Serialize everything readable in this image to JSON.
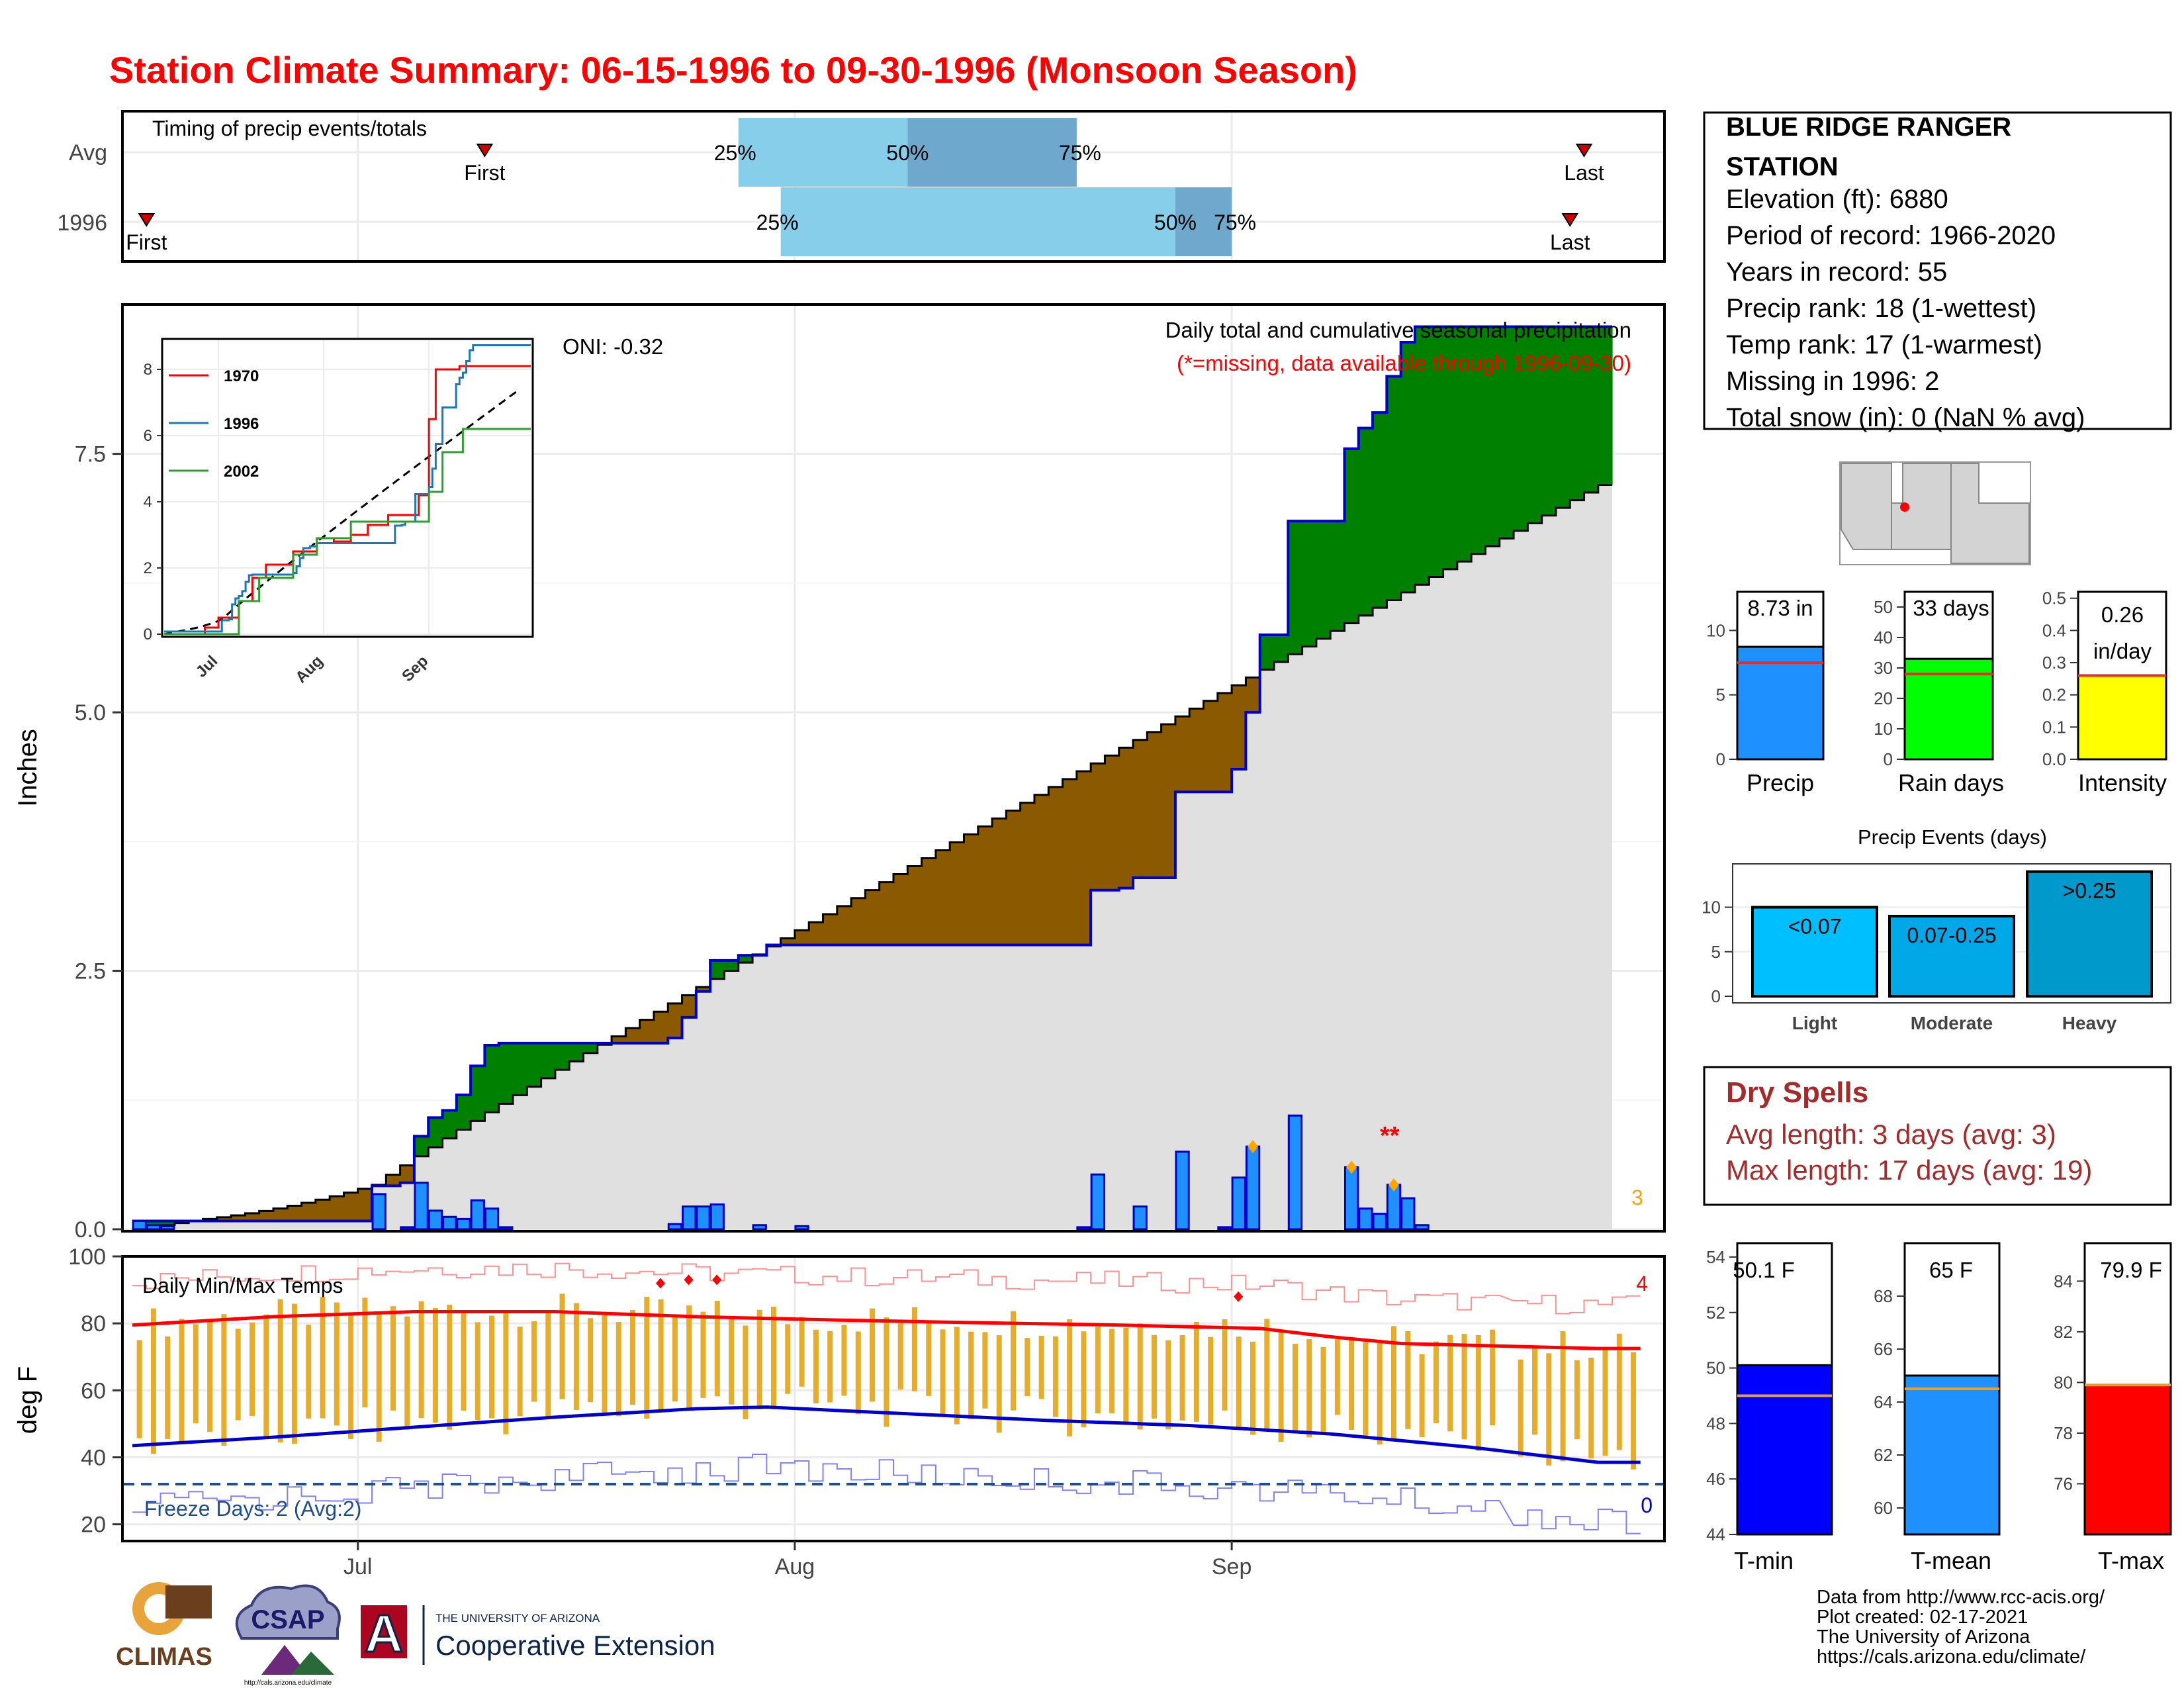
{
  "title": "Station Climate Summary: 06-15-1996 to 09-30-1996 (Monsoon Season)",
  "colors": {
    "title": "#ff0000",
    "drySpells": "#a52a2a",
    "green": "#008000",
    "brown": "#8b5a00",
    "blueBar": "#1e90ff",
    "cumLine": "#0000cc",
    "gray": "#e0e0e0",
    "tmax": "#ff0000",
    "tmin": "#0000cc",
    "tbar": "#e6ac2a",
    "light": "#00bfff",
    "moderate": "#00a8e8",
    "heavy": "#0099cc",
    "rainDays": "#00ff00",
    "intensity": "#ffff00",
    "tminBox": "#0000ff",
    "tmeanBox": "#1e90ff",
    "tmaxBox": "#ff0000"
  },
  "timing": {
    "label": "Timing of precip events/totals",
    "rows": [
      "Avg",
      "1996"
    ],
    "avg": {
      "first_day": 25,
      "last_day": 103,
      "p25": 43,
      "p50": 55,
      "p75": 67
    },
    "y1996": {
      "first_day": 1,
      "last_day": 102,
      "p25": 46,
      "p50": 74,
      "p75": 78
    },
    "first_label": "First",
    "last_label": "Last",
    "p25_label": "25%",
    "p50_label": "50%",
    "p75_label": "75%"
  },
  "main": {
    "title_line1": "Daily total and cumulative seasonal precipitation",
    "title_line2": "(*=missing, data available through 1996-09-30)",
    "oni": "ONI: -0.32",
    "ylabel": "Inches",
    "yticks": [
      "0.0",
      "2.5",
      "5.0",
      "7.5"
    ],
    "missing_marker": "**",
    "count_label": "3"
  },
  "chart_data": [
    {
      "type": "area",
      "title": "Daily total and cumulative seasonal precipitation",
      "ylabel": "Inches",
      "ylim": [
        0,
        8.9
      ],
      "x_start": "1996-06-15",
      "x_months": [
        "Jul",
        "Aug",
        "Sep"
      ],
      "series": [
        {
          "name": "1996",
          "cumulative": [
            [
              0,
              0.08
            ],
            [
              16,
              0.08
            ],
            [
              17,
              0.42
            ],
            [
              19,
              0.45
            ],
            [
              20,
              0.9
            ],
            [
              21,
              1.08
            ],
            [
              22,
              1.15
            ],
            [
              23,
              1.3
            ],
            [
              24,
              1.58
            ],
            [
              25,
              1.78
            ],
            [
              26,
              1.8
            ],
            [
              37,
              1.8
            ],
            [
              38,
              1.85
            ],
            [
              39,
              2.05
            ],
            [
              40,
              2.3
            ],
            [
              41,
              2.6
            ],
            [
              42,
              2.6
            ],
            [
              43,
              2.65
            ],
            [
              44,
              2.65
            ],
            [
              45,
              2.75
            ],
            [
              67,
              2.75
            ],
            [
              68,
              3.28
            ],
            [
              70,
              3.3
            ],
            [
              71,
              3.4
            ],
            [
              74,
              4.23
            ],
            [
              77,
              4.23
            ],
            [
              78,
              4.45
            ],
            [
              79,
              5.0
            ],
            [
              80,
              5.75
            ],
            [
              81,
              5.75
            ],
            [
              82,
              6.85
            ],
            [
              85,
              6.85
            ],
            [
              86,
              7.55
            ],
            [
              87,
              7.75
            ],
            [
              88,
              7.9
            ],
            [
              89,
              8.25
            ],
            [
              90,
              8.58
            ],
            [
              91,
              8.73
            ],
            [
              104,
              8.73
            ]
          ]
        },
        {
          "name": "Avg",
          "cumulative_endpoints": [
            [
              0,
              0
            ],
            [
              104,
              7.2
            ]
          ]
        }
      ],
      "daily_precip": [
        [
          0,
          0.08
        ],
        [
          1,
          0.04
        ],
        [
          2,
          0.03
        ],
        [
          17,
          0.34
        ],
        [
          19,
          0.02
        ],
        [
          20,
          0.45
        ],
        [
          21,
          0.18
        ],
        [
          22,
          0.12
        ],
        [
          23,
          0.1
        ],
        [
          24,
          0.28
        ],
        [
          25,
          0.2
        ],
        [
          26,
          0.02
        ],
        [
          38,
          0.05
        ],
        [
          39,
          0.22
        ],
        [
          40,
          0.22
        ],
        [
          41,
          0.24
        ],
        [
          44,
          0.04
        ],
        [
          47,
          0.03
        ],
        [
          67,
          0.02
        ],
        [
          68,
          0.53
        ],
        [
          71,
          0.22
        ],
        [
          74,
          0.75
        ],
        [
          77,
          0.02
        ],
        [
          78,
          0.5
        ],
        [
          79,
          0.8
        ],
        [
          82,
          1.1
        ],
        [
          86,
          0.6
        ],
        [
          87,
          0.2
        ],
        [
          88,
          0.15
        ],
        [
          89,
          0.43
        ],
        [
          90,
          0.3
        ],
        [
          91,
          0.04
        ]
      ],
      "orange_dots_days": [
        79,
        86,
        89
      ]
    },
    {
      "type": "line",
      "title": "Daily Min/Max Temps",
      "ylabel": "deg F",
      "ylim": [
        15,
        100
      ],
      "yticks": [
        20,
        40,
        60,
        80,
        100
      ],
      "freeze_threshold": 32,
      "series": [
        {
          "name": "avg_tmax",
          "points": [
            [
              0,
              79.5
            ],
            [
              10,
              82
            ],
            [
              20,
              83.5
            ],
            [
              30,
              83.5
            ],
            [
              40,
              82
            ],
            [
              50,
              81
            ],
            [
              60,
              80.2
            ],
            [
              70,
              79.5
            ],
            [
              80,
              78.5
            ],
            [
              85,
              76
            ],
            [
              90,
              74
            ],
            [
              104,
              72.5
            ]
          ]
        },
        {
          "name": "avg_tmin",
          "points": [
            [
              0,
              43.5
            ],
            [
              10,
              46
            ],
            [
              20,
              49
            ],
            [
              30,
              52
            ],
            [
              40,
              54.5
            ],
            [
              45,
              55
            ],
            [
              55,
              53
            ],
            [
              65,
              51
            ],
            [
              75,
              49.5
            ],
            [
              85,
              47
            ],
            [
              95,
              43
            ],
            [
              104,
              38.5
            ]
          ]
        }
      ]
    },
    {
      "type": "bar",
      "title": "Precip",
      "categories": [
        "Precip"
      ],
      "values": [
        8.73
      ],
      "ylim": [
        0,
        13
      ],
      "avg_line": 7.5
    },
    {
      "type": "bar",
      "title": "Rain days",
      "categories": [
        "Rain days"
      ],
      "values": [
        33
      ],
      "ylim": [
        0,
        55
      ],
      "avg_line": 28
    },
    {
      "type": "bar",
      "title": "Intensity",
      "categories": [
        "Intensity"
      ],
      "values": [
        0.26
      ],
      "ylim": [
        0,
        0.52
      ],
      "avg_line": 0.26
    },
    {
      "type": "bar",
      "title": "Precip Events (days)",
      "categories": [
        "Light",
        "Moderate",
        "Heavy"
      ],
      "values": [
        10,
        9,
        14
      ],
      "ylim": [
        0,
        14.5
      ]
    },
    {
      "type": "bar",
      "title": "T-min",
      "categories": [
        "T-min"
      ],
      "values": [
        50.1
      ],
      "ylim": [
        44,
        54.5
      ],
      "avg_line": 49.0
    },
    {
      "type": "bar",
      "title": "T-mean",
      "categories": [
        "T-mean"
      ],
      "values": [
        65
      ],
      "ylim": [
        59,
        70
      ],
      "avg_line": 64.5
    },
    {
      "type": "bar",
      "title": "T-max",
      "categories": [
        "T-max"
      ],
      "values": [
        79.9
      ],
      "ylim": [
        74,
        85.5
      ],
      "avg_line": 79.9
    }
  ],
  "inset": {
    "yticks": [
      "0",
      "2",
      "4",
      "6",
      "8"
    ],
    "xticks": [
      "Jul",
      "Aug",
      "Sep"
    ],
    "legend": [
      "1970",
      "1996",
      "2002"
    ],
    "legend_colors": [
      "#ff0000",
      "#1f77b4",
      "#2ca02c"
    ]
  },
  "temps": {
    "title": "Daily Min/Max Temps",
    "freeze": "Freeze Days: 2 (Avg:2)",
    "top_count": "4",
    "bottom_count": "0",
    "ylabel": "deg F",
    "yticks": [
      "100",
      "80",
      "60",
      "40",
      "20"
    ],
    "xticks": [
      "Jul",
      "Aug",
      "Sep"
    ]
  },
  "station": {
    "name_line1": "BLUE RIDGE RANGER",
    "name_line2": "STATION",
    "elevation": "Elevation (ft): 6880",
    "period": "Period of record: 1966-2020",
    "years": "Years in record: 55",
    "precip_rank": "Precip rank: 18 (1-wettest)",
    "temp_rank": "Temp rank: 17 (1-warmest)",
    "missing": "Missing in 1996: 2",
    "snow": "Total snow (in): 0 (NaN % avg)"
  },
  "summary_bars": {
    "precip": {
      "label": "Precip",
      "value_text": "8.73 in",
      "yticks": [
        "10",
        "5",
        "0"
      ]
    },
    "raindays": {
      "label": "Rain days",
      "value_text": "33 days",
      "yticks": [
        "50",
        "40",
        "30",
        "20",
        "10",
        "0"
      ]
    },
    "intensity": {
      "label": "Intensity",
      "value_text1": "0.26",
      "value_text2": "in/day",
      "yticks": [
        "0.5",
        "0.4",
        "0.3",
        "0.2",
        "0.1",
        "0.0"
      ]
    }
  },
  "events": {
    "title": "Precip Events (days)",
    "labels": [
      "Light",
      "Moderate",
      "Heavy"
    ],
    "bar_text": [
      "<0.07",
      "0.07-0.25",
      ">0.25"
    ],
    "yticks": [
      "10",
      "5",
      "0"
    ]
  },
  "dry": {
    "title": "Dry Spells",
    "avg": "Avg length: 3 days (avg: 3)",
    "max": "Max length: 17 days (avg: 19)"
  },
  "tboxes": {
    "tmin": {
      "label": "T-min",
      "value_text": "50.1 F",
      "yticks": [
        "54",
        "52",
        "50",
        "48",
        "46",
        "44"
      ]
    },
    "tmean": {
      "label": "T-mean",
      "value_text": "65 F",
      "yticks": [
        "68",
        "66",
        "64",
        "62",
        "60"
      ]
    },
    "tmax": {
      "label": "T-max",
      "value_text": "79.9 F",
      "yticks": [
        "84",
        "82",
        "80",
        "78",
        "76"
      ]
    }
  },
  "footer": {
    "line1": "Data from http://www.rcc-acis.org/",
    "line2": "Plot created: 02-17-2021",
    "line3": "The University of Arizona",
    "line4": "https://cals.arizona.edu/climate/"
  },
  "logos": {
    "climas": "CLIMAS",
    "csap": "CSAP",
    "csap_url": "http://cals.arizona.edu/climate",
    "ua_line1": "THE UNIVERSITY OF ARIZONA",
    "ua_line2": "Cooperative Extension",
    "ua_letter": "A"
  }
}
